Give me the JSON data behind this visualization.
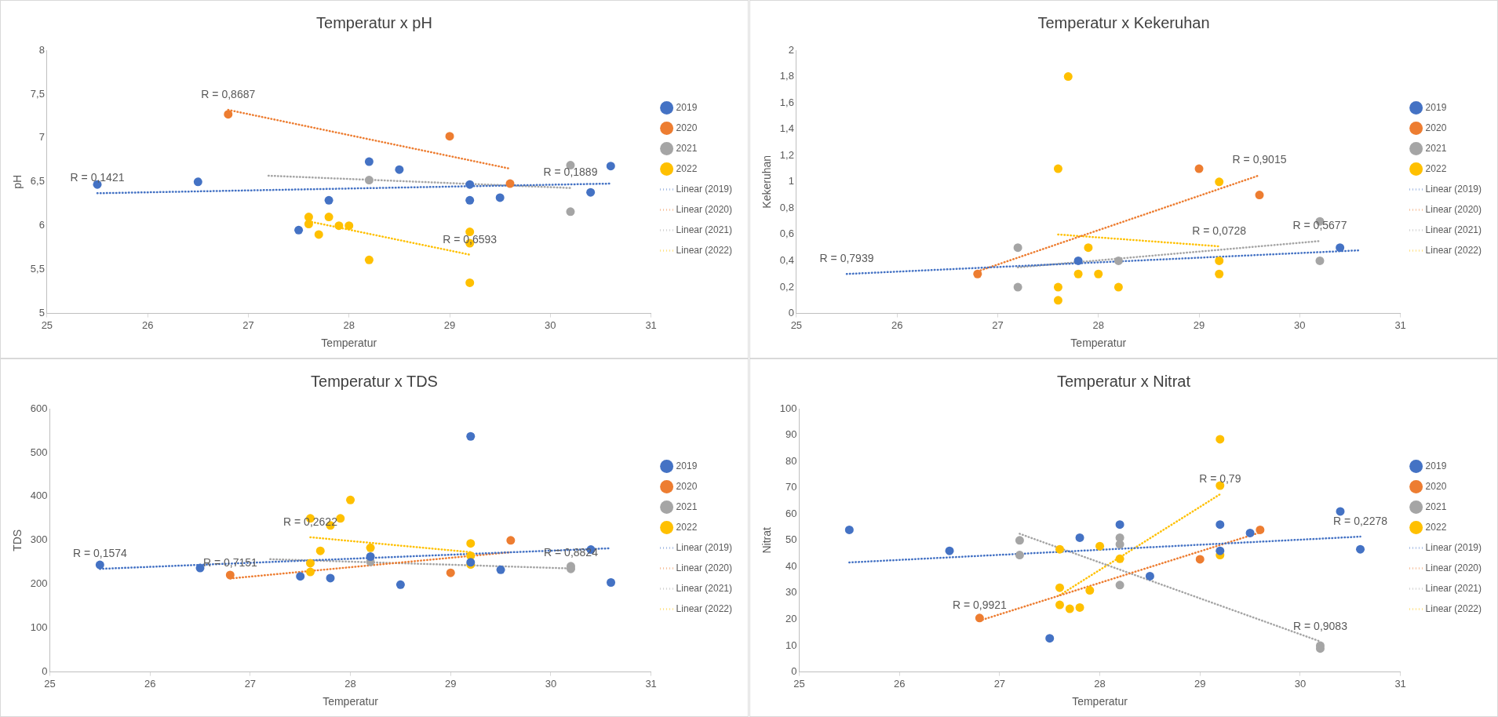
{
  "chart_data": [
    {
      "type": "scatter",
      "title": "Temperatur x pH",
      "xlabel": "Temperatur",
      "ylabel": "pH",
      "xlim": [
        25,
        31
      ],
      "xticks": [
        25,
        26,
        27,
        28,
        29,
        30,
        31
      ],
      "ylim": [
        5,
        8
      ],
      "yticks": [
        5,
        {
          "value": 5.5,
          "label": "5,5"
        },
        6,
        {
          "value": 6.5,
          "label": "6,5"
        },
        7,
        {
          "value": 7.5,
          "label": "7,5"
        },
        8
      ],
      "grid": false,
      "legend": "right",
      "marker": "circle",
      "series": [
        {
          "name": "2019",
          "color": "#4472c4",
          "x": [
            25.5,
            26.5,
            27.5,
            27.8,
            28.2,
            28.5,
            29.2,
            29.2,
            29.5,
            30.4,
            30.6
          ],
          "values": [
            6.47,
            6.5,
            5.95,
            6.29,
            6.73,
            6.64,
            6.47,
            6.29,
            6.32,
            6.38,
            6.68
          ]
        },
        {
          "name": "2020",
          "color": "#ed7d31",
          "x": [
            26.8,
            29.0,
            29.6
          ],
          "values": [
            7.27,
            7.02,
            6.48
          ]
        },
        {
          "name": "2021",
          "color": "#a5a5a5",
          "x": [
            28.2,
            30.2,
            30.2
          ],
          "values": [
            6.52,
            6.69,
            6.16
          ]
        },
        {
          "name": "2022",
          "color": "#ffc000",
          "x": [
            27.6,
            27.6,
            27.7,
            27.8,
            27.9,
            28.0,
            28.2,
            29.2,
            29.2,
            29.2
          ],
          "values": [
            6.1,
            6.02,
            5.9,
            6.1,
            6.0,
            6.0,
            5.61,
            5.93,
            5.8,
            5.35
          ]
        },
        {
          "name": "Linear (2019)",
          "type": "line",
          "color": "#4472c4",
          "line_style": "dotted",
          "marker": "none",
          "x": [
            25.5,
            30.6
          ],
          "values": [
            6.37,
            6.48
          ]
        },
        {
          "name": "Linear (2020)",
          "type": "line",
          "color": "#ed7d31",
          "line_style": "dotted",
          "marker": "none",
          "x": [
            26.8,
            29.6
          ],
          "values": [
            7.32,
            6.65
          ]
        },
        {
          "name": "Linear (2021)",
          "type": "line",
          "color": "#a5a5a5",
          "line_style": "dotted",
          "marker": "none",
          "x": [
            27.2,
            30.2
          ],
          "values": [
            6.57,
            6.43
          ]
        },
        {
          "name": "Linear (2022)",
          "type": "line",
          "color": "#ffc000",
          "line_style": "dotted",
          "marker": "none",
          "x": [
            27.6,
            29.2
          ],
          "values": [
            6.05,
            5.67
          ]
        }
      ],
      "annotations": [
        {
          "text": "R = 0,1421",
          "x": 25.5,
          "y": 6.37
        },
        {
          "text": "R = 0,8687",
          "x": 26.8,
          "y": 7.32
        },
        {
          "text": "R = 0,6593",
          "x": 29.2,
          "y": 5.67
        },
        {
          "text": "R = 0,1889",
          "x": 30.2,
          "y": 6.43
        }
      ]
    },
    {
      "type": "scatter",
      "title": "Temperatur x Kekeruhan",
      "xlabel": "Temperatur",
      "ylabel": "Kekeruhan",
      "xlim": [
        25,
        31
      ],
      "xticks": [
        25,
        26,
        27,
        28,
        29,
        30,
        31
      ],
      "ylim": [
        0,
        2
      ],
      "yticks": [
        0,
        {
          "value": 0.2,
          "label": "0,2"
        },
        {
          "value": 0.4,
          "label": "0,4"
        },
        {
          "value": 0.6,
          "label": "0,6"
        },
        {
          "value": 0.8,
          "label": "0,8"
        },
        1,
        {
          "value": 1.2,
          "label": "1,2"
        },
        {
          "value": 1.4,
          "label": "1,4"
        },
        {
          "value": 1.6,
          "label": "1,6"
        },
        {
          "value": 1.8,
          "label": "1,8"
        },
        2
      ],
      "grid": false,
      "legend": "right",
      "marker": "circle",
      "series": [
        {
          "name": "2019",
          "color": "#4472c4",
          "x": [
            27.8,
            30.4
          ],
          "values": [
            0.4,
            0.5
          ]
        },
        {
          "name": "2020",
          "color": "#ed7d31",
          "x": [
            26.8,
            29.0,
            29.6
          ],
          "values": [
            0.3,
            1.1,
            0.9
          ]
        },
        {
          "name": "2021",
          "color": "#a5a5a5",
          "x": [
            27.2,
            27.2,
            28.2,
            30.2,
            30.2
          ],
          "values": [
            0.5,
            0.2,
            0.4,
            0.7,
            0.4
          ]
        },
        {
          "name": "2022",
          "color": "#ffc000",
          "x": [
            27.6,
            27.6,
            27.6,
            27.7,
            27.8,
            27.9,
            28.0,
            28.2,
            29.2,
            29.2,
            29.2
          ],
          "values": [
            1.1,
            0.2,
            0.1,
            1.8,
            0.3,
            0.5,
            0.3,
            0.2,
            1.0,
            0.4,
            0.3
          ]
        },
        {
          "name": "Linear (2019)",
          "type": "line",
          "color": "#4472c4",
          "line_style": "dotted",
          "marker": "none",
          "x": [
            25.5,
            30.6
          ],
          "values": [
            0.3,
            0.48
          ]
        },
        {
          "name": "Linear (2020)",
          "type": "line",
          "color": "#ed7d31",
          "line_style": "dotted",
          "marker": "none",
          "x": [
            26.8,
            29.6
          ],
          "values": [
            0.32,
            1.05
          ]
        },
        {
          "name": "Linear (2021)",
          "type": "line",
          "color": "#a5a5a5",
          "line_style": "dotted",
          "marker": "none",
          "x": [
            27.2,
            30.2
          ],
          "values": [
            0.35,
            0.55
          ]
        },
        {
          "name": "Linear (2022)",
          "type": "line",
          "color": "#ffc000",
          "line_style": "dotted",
          "marker": "none",
          "x": [
            27.6,
            29.2
          ],
          "values": [
            0.6,
            0.51
          ]
        }
      ],
      "annotations": [
        {
          "text": "R = 0,7939",
          "x": 25.5,
          "y": 0.3
        },
        {
          "text": "R = 0,9015",
          "x": 29.6,
          "y": 1.05
        },
        {
          "text": "R = 0,0728",
          "x": 29.2,
          "y": 0.51
        },
        {
          "text": "R = 0,5677",
          "x": 30.2,
          "y": 0.55
        }
      ]
    },
    {
      "type": "scatter",
      "title": "Temperatur x TDS",
      "xlabel": "Temperatur",
      "ylabel": "TDS",
      "xlim": [
        25,
        31
      ],
      "xticks": [
        25,
        26,
        27,
        28,
        29,
        30,
        31
      ],
      "ylim": [
        0,
        600
      ],
      "yticks": [
        0,
        100,
        200,
        300,
        400,
        500,
        600
      ],
      "grid": false,
      "legend": "right",
      "marker": "circle",
      "series": [
        {
          "name": "2019",
          "color": "#4472c4",
          "x": [
            25.5,
            26.5,
            27.5,
            27.8,
            28.2,
            28.5,
            29.2,
            29.2,
            29.5,
            30.4,
            30.6
          ],
          "values": [
            244,
            237,
            218,
            214,
            263,
            199,
            537,
            250,
            233,
            279,
            204
          ]
        },
        {
          "name": "2020",
          "color": "#ed7d31",
          "x": [
            26.8,
            29.0,
            29.6
          ],
          "values": [
            221,
            226,
            300
          ]
        },
        {
          "name": "2021",
          "color": "#a5a5a5",
          "x": [
            28.2,
            30.2,
            30.2
          ],
          "values": [
            251,
            241,
            235
          ]
        },
        {
          "name": "2022",
          "color": "#ffc000",
          "x": [
            27.6,
            27.6,
            27.6,
            27.7,
            27.8,
            27.9,
            28.0,
            28.2,
            29.2,
            29.2,
            29.2
          ],
          "values": [
            350,
            248,
            228,
            276,
            334,
            350,
            392,
            283,
            293,
            265,
            245
          ]
        },
        {
          "name": "Linear (2019)",
          "type": "line",
          "color": "#4472c4",
          "line_style": "dotted",
          "marker": "none",
          "x": [
            25.5,
            30.6
          ],
          "values": [
            235,
            282
          ]
        },
        {
          "name": "Linear (2020)",
          "type": "line",
          "color": "#ed7d31",
          "line_style": "dotted",
          "marker": "none",
          "x": [
            26.8,
            29.6
          ],
          "values": [
            213,
            273
          ]
        },
        {
          "name": "Linear (2021)",
          "type": "line",
          "color": "#a5a5a5",
          "line_style": "dotted",
          "marker": "none",
          "x": [
            27.2,
            30.2
          ],
          "values": [
            257,
            236
          ]
        },
        {
          "name": "Linear (2022)",
          "type": "line",
          "color": "#ffc000",
          "line_style": "dotted",
          "marker": "none",
          "x": [
            27.6,
            29.2
          ],
          "values": [
            307,
            273
          ]
        }
      ],
      "annotations": [
        {
          "text": "R = 0,1574",
          "x": 25.5,
          "y": 235
        },
        {
          "text": "R = 0,7151",
          "x": 26.8,
          "y": 213
        },
        {
          "text": "R = 0,2622",
          "x": 27.6,
          "y": 307
        },
        {
          "text": "R = 0,8824",
          "x": 30.2,
          "y": 236
        }
      ]
    },
    {
      "type": "scatter",
      "title": "Temperatur x Nitrat",
      "xlabel": "Temperatur",
      "ylabel": "Nitrat",
      "xlim": [
        25,
        31
      ],
      "xticks": [
        25,
        26,
        27,
        28,
        29,
        30,
        31
      ],
      "ylim": [
        0,
        100
      ],
      "yticks": [
        0,
        10,
        20,
        30,
        40,
        50,
        60,
        70,
        80,
        90,
        100
      ],
      "grid": false,
      "legend": "right",
      "marker": "circle",
      "series": [
        {
          "name": "2019",
          "color": "#4472c4",
          "x": [
            25.5,
            26.5,
            27.5,
            27.8,
            28.2,
            28.5,
            29.2,
            29.2,
            29.5,
            30.4,
            30.6
          ],
          "values": [
            54,
            46,
            12.8,
            51,
            56,
            36.4,
            56,
            46,
            52.8,
            61,
            46.6
          ]
        },
        {
          "name": "2020",
          "color": "#ed7d31",
          "x": [
            26.8,
            29.0,
            29.6
          ],
          "values": [
            20.5,
            42.8,
            54
          ]
        },
        {
          "name": "2021",
          "color": "#a5a5a5",
          "x": [
            27.2,
            27.2,
            28.2,
            28.2,
            28.2,
            30.2,
            30.2
          ],
          "values": [
            50,
            44.4,
            51,
            48.5,
            33,
            10,
            8.9
          ]
        },
        {
          "name": "2022",
          "color": "#ffc000",
          "x": [
            27.6,
            27.6,
            27.6,
            27.7,
            27.8,
            27.9,
            28.0,
            28.2,
            29.2,
            29.2,
            29.2
          ],
          "values": [
            46.6,
            32,
            25.5,
            24,
            24.5,
            31,
            47.8,
            43,
            88.4,
            70.8,
            44.4
          ]
        },
        {
          "name": "Linear (2019)",
          "type": "line",
          "color": "#4472c4",
          "line_style": "dotted",
          "marker": "none",
          "x": [
            25.5,
            30.6
          ],
          "values": [
            41.6,
            51.4
          ]
        },
        {
          "name": "Linear (2020)",
          "type": "line",
          "color": "#ed7d31",
          "line_style": "dotted",
          "marker": "none",
          "x": [
            26.8,
            29.6
          ],
          "values": [
            19.5,
            53
          ]
        },
        {
          "name": "Linear (2021)",
          "type": "line",
          "color": "#a5a5a5",
          "line_style": "dotted",
          "marker": "none",
          "x": [
            27.2,
            30.2
          ],
          "values": [
            52.5,
            11.6
          ]
        },
        {
          "name": "Linear (2022)",
          "type": "line",
          "color": "#ffc000",
          "line_style": "dotted",
          "marker": "none",
          "x": [
            27.6,
            29.2
          ],
          "values": [
            29.2,
            67.5
          ]
        }
      ],
      "annotations": [
        {
          "text": "R = 0,79",
          "x": 29.2,
          "y": 67.5
        },
        {
          "text": "R = 0,2278",
          "x": 30.6,
          "y": 51.4
        },
        {
          "text": "R = 0,9921",
          "x": 26.8,
          "y": 19.5
        },
        {
          "text": "R = 0,9083",
          "x": 30.2,
          "y": 11.6
        }
      ]
    }
  ]
}
